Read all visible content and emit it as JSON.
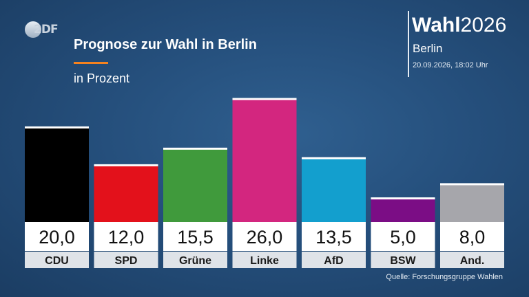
{
  "header": {
    "logo_text": "2DF",
    "title": "Prognose zur Wahl in Berlin",
    "subtitle": "in Prozent",
    "brand_bold": "Wahl",
    "brand_year": "2026",
    "region": "Berlin",
    "timestamp": "20.09.2026, 18:02 Uhr"
  },
  "footer": {
    "source": "Quelle: Forschungsgruppe Wahlen"
  },
  "chart_data": {
    "type": "bar",
    "title": "Prognose zur Wahl in Berlin",
    "subtitle": "in Prozent",
    "categories": [
      "CDU",
      "SPD",
      "Grüne",
      "Linke",
      "AfD",
      "BSW",
      "And."
    ],
    "values": [
      20.0,
      12.0,
      15.5,
      26.0,
      13.5,
      5.0,
      8.0
    ],
    "value_labels": [
      "20,0",
      "12,0",
      "15,5",
      "26,0",
      "13,5",
      "5,0",
      "8,0"
    ],
    "colors": [
      "#000000",
      "#e3111b",
      "#409a3c",
      "#d3267f",
      "#139fce",
      "#7b0d85",
      "#a6a6ab"
    ],
    "ylim": [
      0,
      26
    ],
    "grid": false,
    "legend": "none"
  }
}
